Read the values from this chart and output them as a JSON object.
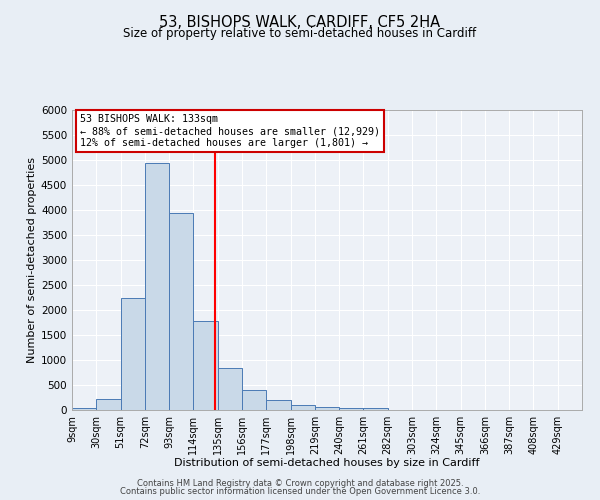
{
  "title_line1": "53, BISHOPS WALK, CARDIFF, CF5 2HA",
  "title_line2": "Size of property relative to semi-detached houses in Cardiff",
  "xlabel": "Distribution of semi-detached houses by size in Cardiff",
  "ylabel": "Number of semi-detached properties",
  "bin_labels": [
    "9sqm",
    "30sqm",
    "51sqm",
    "72sqm",
    "93sqm",
    "114sqm",
    "135sqm",
    "156sqm",
    "177sqm",
    "198sqm",
    "219sqm",
    "240sqm",
    "261sqm",
    "282sqm",
    "303sqm",
    "324sqm",
    "345sqm",
    "366sqm",
    "387sqm",
    "408sqm",
    "429sqm"
  ],
  "bin_edges": [
    9,
    30,
    51,
    72,
    93,
    114,
    135,
    156,
    177,
    198,
    219,
    240,
    261,
    282,
    303,
    324,
    345,
    366,
    387,
    408,
    429
  ],
  "bar_heights": [
    50,
    230,
    2250,
    4950,
    3950,
    1780,
    850,
    400,
    200,
    100,
    70,
    50,
    50,
    10,
    10,
    5,
    5,
    2,
    2,
    2
  ],
  "bar_color": "#c9d9e8",
  "bar_edge_color": "#4a7ab5",
  "red_line_x": 133,
  "ylim": [
    0,
    6000
  ],
  "yticks": [
    0,
    500,
    1000,
    1500,
    2000,
    2500,
    3000,
    3500,
    4000,
    4500,
    5000,
    5500,
    6000
  ],
  "annotation_title": "53 BISHOPS WALK: 133sqm",
  "annotation_line2": "← 88% of semi-detached houses are smaller (12,929)",
  "annotation_line3": "12% of semi-detached houses are larger (1,801) →",
  "annotation_box_color": "#ffffff",
  "annotation_box_edge": "#cc0000",
  "footer_line1": "Contains HM Land Registry data © Crown copyright and database right 2025.",
  "footer_line2": "Contains public sector information licensed under the Open Government Licence 3.0.",
  "background_color": "#e8eef5",
  "plot_bg_color": "#edf1f7"
}
